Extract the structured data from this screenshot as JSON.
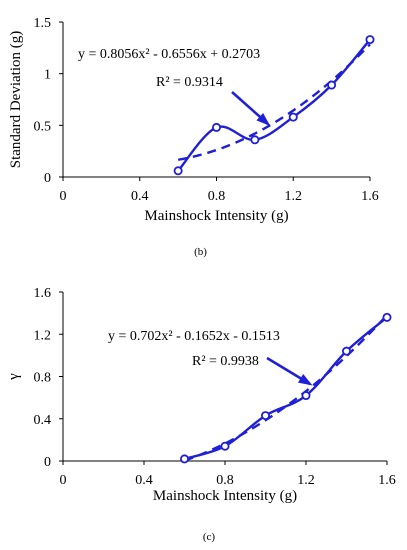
{
  "colors": {
    "series": "#1f1fd6",
    "axis": "#000000",
    "background": "#ffffff"
  },
  "chart_data": [
    {
      "type": "scatter",
      "panel_label": "(b)",
      "xlabel": "Mainshock Intensity (g)",
      "ylabel": "Standard Deviation  (g)",
      "xlim": [
        0,
        1.6
      ],
      "ylim": [
        0,
        1.5
      ],
      "xticks": [
        0,
        0.4,
        0.8,
        1.2,
        1.6
      ],
      "xtick_labels": [
        "0",
        "0.4",
        "0.8",
        "1.2",
        "1.6"
      ],
      "yticks": [
        0,
        0.5,
        1,
        1.5
      ],
      "ytick_labels": [
        "0",
        "0.5",
        "1",
        "1.5"
      ],
      "grid": false,
      "series": [
        {
          "style": "smoothed line with circle markers",
          "x": [
            0.6,
            0.8,
            1.0,
            1.2,
            1.4,
            1.6
          ],
          "y": [
            0.06,
            0.48,
            0.36,
            0.58,
            0.89,
            1.33
          ]
        }
      ],
      "trendline": {
        "type": "polynomial-2",
        "a": 0.8056,
        "b": -0.6556,
        "c": 0.2703,
        "x_range": [
          0.6,
          1.6
        ],
        "style": "dashed"
      },
      "annotation": {
        "equation": "y = 0.8056x² - 0.6556x + 0.2703",
        "r2": "R² = 0.9314"
      }
    },
    {
      "type": "scatter",
      "panel_label": "(c)",
      "xlabel": "Mainshock Intensity (g)",
      "ylabel": "γ",
      "xlim": [
        0,
        1.6
      ],
      "ylim": [
        0,
        1.6
      ],
      "xticks": [
        0,
        0.4,
        0.8,
        1.2,
        1.6
      ],
      "xtick_labels": [
        "0",
        "0.4",
        "0.8",
        "1.2",
        "1.6"
      ],
      "yticks": [
        0,
        0.4,
        0.8,
        1.2,
        1.6
      ],
      "ytick_labels": [
        "0",
        "0.4",
        "0.8",
        "1.2",
        "1.6"
      ],
      "grid": false,
      "series": [
        {
          "style": "smoothed line with circle markers",
          "x": [
            0.6,
            0.8,
            1.0,
            1.2,
            1.4,
            1.6
          ],
          "y": [
            0.02,
            0.14,
            0.43,
            0.62,
            1.04,
            1.36
          ]
        }
      ],
      "trendline": {
        "type": "polynomial-2",
        "a": 0.702,
        "b": -0.1652,
        "c": -0.1513,
        "x_range": [
          0.6,
          1.6
        ],
        "style": "dashed"
      },
      "annotation": {
        "equation": "y = 0.702x² - 0.1652x - 0.1513",
        "r2": "R² = 0.9938"
      }
    }
  ]
}
